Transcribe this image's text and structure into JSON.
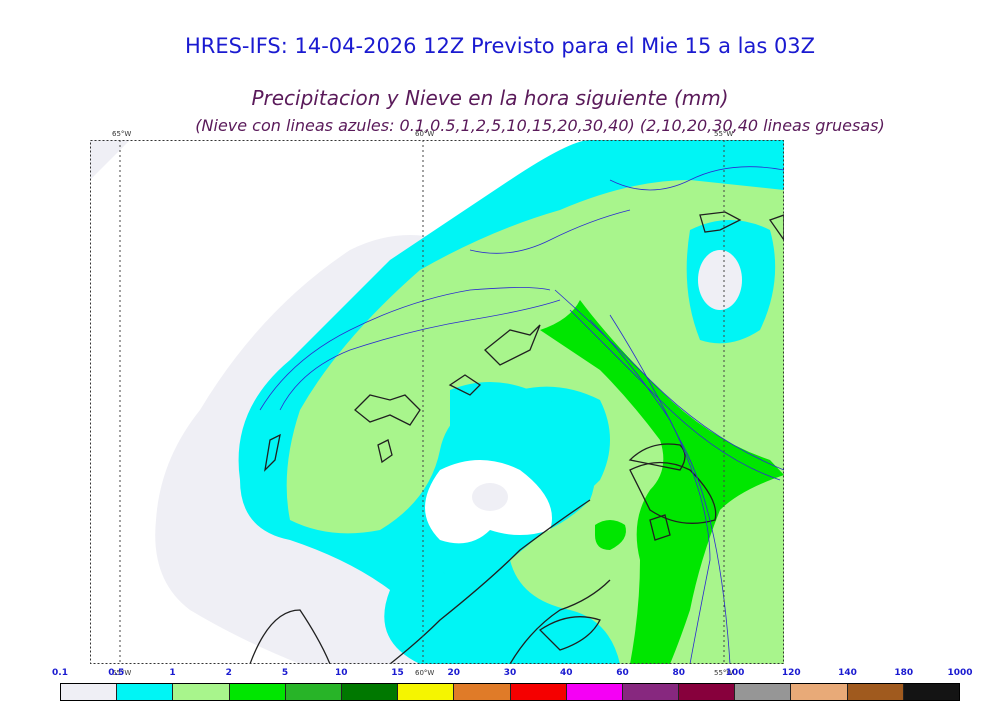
{
  "header": {
    "title": "HRES-IFS: 14-04-2026 12Z Previsto para el Mie 15 a las 03Z",
    "subtitle": "Precipitacion y Nieve en la hora siguiente (mm)",
    "subtitle2": "(Nieve con lineas azules: 0.1,0.5,1,2,5,10,15,20,30,40)  (2,10,20,30,40 lineas gruesas)"
  },
  "map": {
    "lon_labels_top": [
      "65°W",
      "60°W",
      "55°W"
    ],
    "lon_labels_bottom": [
      "65°W",
      "60°W",
      "55°W"
    ]
  },
  "colorbar": {
    "labels": [
      "0.1",
      "0.5",
      "1",
      "2",
      "5",
      "10",
      "15",
      "20",
      "30",
      "40",
      "60",
      "80",
      "100",
      "120",
      "140",
      "180",
      "1000"
    ],
    "colors": [
      "#efeff5",
      "#00f5f5",
      "#a8f58c",
      "#00e600",
      "#28b428",
      "#007800",
      "#f5f500",
      "#e07b28",
      "#f50000",
      "#f500f5",
      "#87287f",
      "#87003c",
      "#969696",
      "#e8aa78",
      "#a05a1e",
      "#141414"
    ]
  }
}
